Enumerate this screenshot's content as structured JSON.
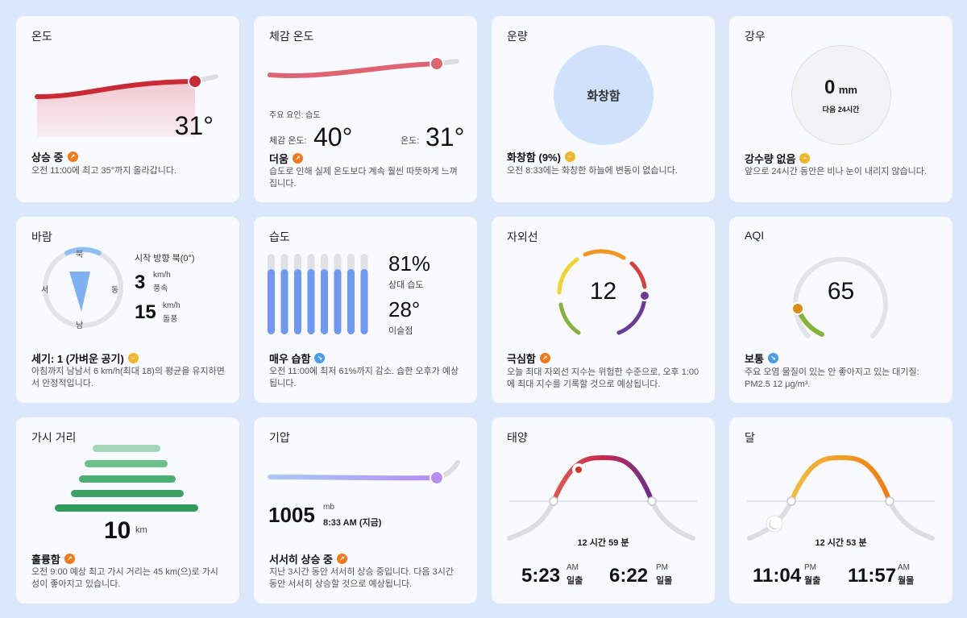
{
  "temperature": {
    "title": "온도",
    "value": "31°",
    "summary": "상승 중",
    "summary_icon": "trend-up-icon",
    "desc": "오전 11:00에 최고 35°까지 올라갑니다."
  },
  "feels_like": {
    "title": "체감 온도",
    "factor": "주요 요인: 습도",
    "feels_label": "체감 온도:",
    "feels_value": "40°",
    "temp_label": "온도:",
    "temp_value": "31°",
    "summary": "더움",
    "summary_icon": "trend-up-icon",
    "desc": "습도로 인해 실제 온도보다 계속 훨씬 따뜻하게 느껴집니다."
  },
  "cloud": {
    "title": "운량",
    "center": "화창함",
    "summary": "화창함 (9%)",
    "summary_icon": "steady-icon",
    "desc": "오전 8:33에는 화창한 하늘에 변동이 없습니다."
  },
  "precip": {
    "title": "강우",
    "value": "0",
    "unit": "mm",
    "period": "다음 24시간",
    "summary": "강수량 없음",
    "summary_icon": "steady-icon",
    "desc": "앞으로 24시간 동안은 비나 눈이 내리지 않습니다."
  },
  "wind": {
    "title": "바람",
    "north": "북",
    "south": "남",
    "east": "동",
    "west": "서",
    "direction": "시작 방향 북(0°)",
    "speed_value": "3",
    "speed_unit": "km/h",
    "speed_label": "풍속",
    "gust_value": "15",
    "gust_unit": "km/h",
    "gust_label": "돌풍",
    "summary": "세기: 1 (가벼운 공기)",
    "summary_icon": "steady-icon",
    "desc": "아침까지 남남서 6 km/h(최대 18)의 평균을 유지하면서 안정적입니다."
  },
  "humidity": {
    "title": "습도",
    "value": "81%",
    "value_label": "상대 습도",
    "dew_value": "28°",
    "dew_label": "이슬점",
    "bar_levels": [
      0.81,
      0.81,
      0.81,
      0.81,
      0.81,
      0.81,
      0.81,
      0.81
    ],
    "summary": "매우 습함",
    "summary_icon": "trend-down-icon",
    "desc": "오전 11:00에 최저 61%까지 감소. 습한 오후가 예상됩니다."
  },
  "uv": {
    "title": "자외선",
    "value": "12",
    "summary": "극심함",
    "summary_icon": "trend-up-icon",
    "desc": "오늘 최대 자외선 지수는 위험한 수준으로, 오후 1:00에 최대 지수를 기록할 것으로 예상됩니다."
  },
  "aqi": {
    "title": "AQI",
    "value": "65",
    "summary": "보통",
    "summary_icon": "trend-down-icon",
    "desc": "주요 오염 물질이 있는 안 좋아지고 있는 대기질: PM2.5 12 μg/m³."
  },
  "visibility": {
    "title": "가시 거리",
    "value": "10",
    "unit": "km",
    "summary": "훌륭함",
    "summary_icon": "trend-up-icon",
    "desc": "오전 9:00 예상 최고 가시 거리는 45 km(으)로 가시성이 좋아지고 있습니다."
  },
  "pressure": {
    "title": "기압",
    "value": "1005",
    "unit": "mb",
    "time": "8:33 AM (지금)",
    "summary": "서서히 상승 중",
    "summary_icon": "trend-up-icon",
    "desc": "지난 3시간 동안 서서히 상승 중입니다. 다음 3시간 동안 서서히 상승할 것으로 예상됩니다."
  },
  "sun": {
    "title": "태양",
    "duration": "12 시간 59 분",
    "rise_time": "5:23",
    "rise_ampm": "AM",
    "rise_label": "일출",
    "set_time": "6:22",
    "set_ampm": "PM",
    "set_label": "일몰"
  },
  "moon": {
    "title": "달",
    "duration": "12 시간 53 분",
    "rise_time": "11:04",
    "rise_ampm": "PM",
    "rise_label": "월출",
    "set_time": "11:57",
    "set_ampm": "AM",
    "set_label": "월몰"
  },
  "colors": {
    "temp_line": "#c82a36",
    "feels_line": "#dd6470",
    "cloud_circle": "#cfe1fb",
    "humidity_bar": "#6e98f1",
    "pressure_dot": "#b68df2",
    "visibility_bar": "#2f9b58"
  }
}
